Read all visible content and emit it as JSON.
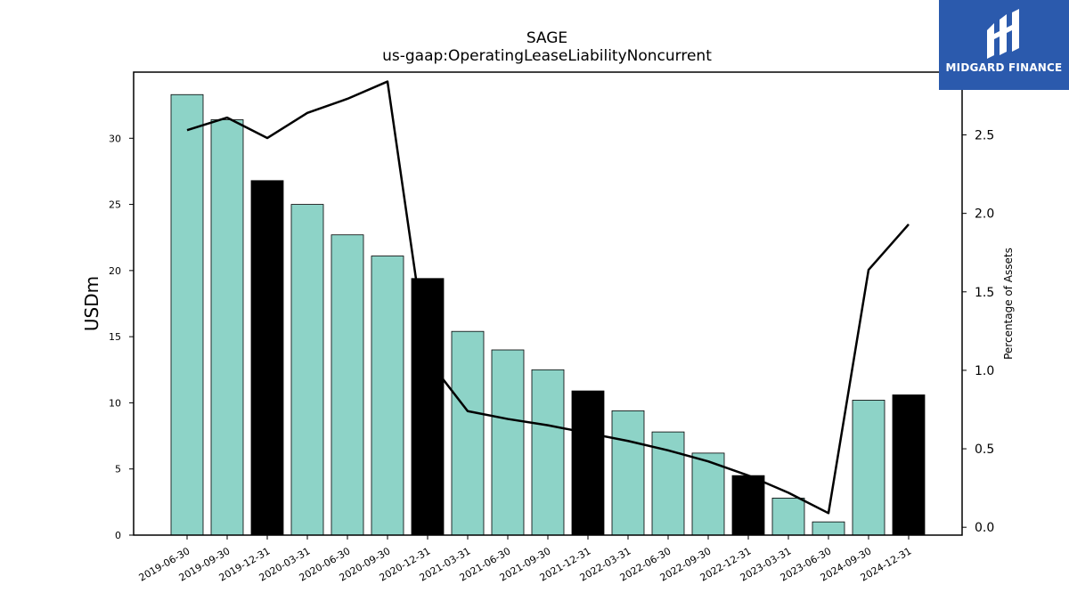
{
  "logo": {
    "text": "MIDGARD FINANCE",
    "icon": "midgard-logo-icon",
    "bg_color": "#2b5aad"
  },
  "chart_data": {
    "type": "bar",
    "title": "SAGE",
    "subtitle": "us-gaap:OperatingLeaseLiabilityNoncurrent",
    "ylabel": "USDm",
    "y2label": "Percentage of Assets",
    "categories": [
      "2019-06-30",
      "2019-09-30",
      "2019-12-31",
      "2020-03-31",
      "2020-06-30",
      "2020-09-30",
      "2020-12-31",
      "2021-03-31",
      "2021-06-30",
      "2021-09-30",
      "2021-12-31",
      "2022-03-31",
      "2022-06-30",
      "2022-09-30",
      "2022-12-31",
      "2023-03-31",
      "2023-06-30",
      "2024-09-30",
      "2024-12-31"
    ],
    "series": [
      {
        "values": [
          33.3,
          31.4,
          26.8,
          25.0,
          22.7,
          21.1,
          19.4,
          15.4,
          14.0,
          12.5,
          10.9,
          9.4,
          7.8,
          6.2,
          4.5,
          2.8,
          1.0,
          10.2,
          10.6
        ]
      },
      {
        "axis": "right",
        "type": "line",
        "values": [
          2.53,
          2.61,
          2.48,
          2.64,
          2.73,
          2.84,
          1.07,
          0.74,
          0.69,
          0.65,
          0.6,
          0.55,
          0.49,
          0.42,
          0.33,
          0.22,
          0.09,
          1.64,
          1.93
        ]
      }
    ],
    "highlight_indices": [
      2,
      6,
      10,
      14,
      18
    ],
    "bar_color": "#8dd3c7",
    "highlight_color": "#000000",
    "line_color": "#000000",
    "ylim": [
      0,
      35
    ],
    "y2lim": [
      -0.05,
      2.9
    ],
    "yticks": [
      0,
      5,
      10,
      15,
      20,
      25,
      30
    ],
    "y2ticks": [
      "0.0",
      "0.5",
      "1.0",
      "1.5",
      "2.0",
      "2.5"
    ],
    "grid": false,
    "legend": "none"
  }
}
